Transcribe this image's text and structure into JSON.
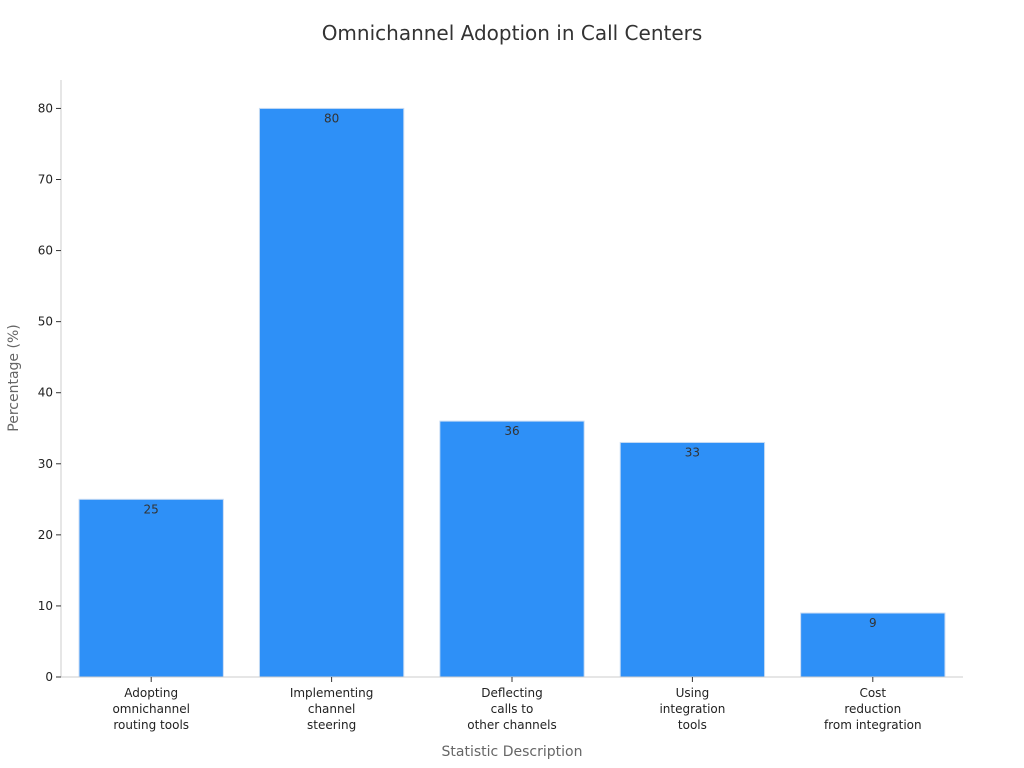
{
  "chart_data": {
    "type": "bar",
    "title": "Omnichannel Adoption in Call Centers",
    "xlabel": "Statistic Description",
    "ylabel": "Percentage (%)",
    "ylim": [
      0,
      84
    ],
    "yticks": [
      0,
      10,
      20,
      30,
      40,
      50,
      60,
      70,
      80
    ],
    "grid": false,
    "categories": [
      [
        "Adopting",
        "omnichannel",
        "routing tools"
      ],
      [
        "Implementing",
        "channel",
        "steering"
      ],
      [
        "Deflecting",
        "calls to",
        "other channels"
      ],
      [
        "Using",
        "integration",
        "tools"
      ],
      [
        "Cost",
        "reduction",
        "from integration"
      ]
    ],
    "values": [
      25,
      80,
      36,
      33,
      9
    ],
    "data_labels": [
      "25",
      "80",
      "36",
      "33",
      "9"
    ],
    "bar_color": "#2e90f7",
    "bar_edge_color": "#c8dcf4",
    "axis_color": "#cccccc"
  }
}
